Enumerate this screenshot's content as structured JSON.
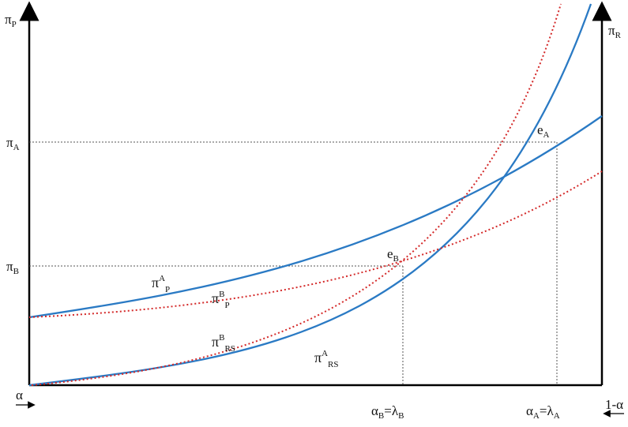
{
  "axes": {
    "left_axis_label": "π",
    "left_axis_sub": "P",
    "right_axis_label": "π",
    "right_axis_sub": "R",
    "x_left_label": "α",
    "x_right_label": "1-α"
  },
  "levels": {
    "pi_A": {
      "main": "π",
      "sub": "A"
    },
    "pi_B": {
      "main": "π",
      "sub": "B"
    }
  },
  "points": {
    "e_A": {
      "main": "e",
      "sub": "A"
    },
    "e_B": {
      "main": "e",
      "sub": "B"
    }
  },
  "x_marks": {
    "alphaB": {
      "a": "α",
      "a_sub": "B",
      "eq": "=λ",
      "l_sub": "B"
    },
    "alphaA": {
      "a": "α",
      "a_sub": "A",
      "eq": "=λ",
      "l_sub": "A"
    }
  },
  "curves": {
    "piA_P": {
      "main": "π",
      "sup": "A",
      "sub": "P",
      "style": "solid",
      "color": "#2a7ac4"
    },
    "piB_P": {
      "main": "π",
      "sup": "B",
      "sub": "P",
      "style": "dotted",
      "color": "#d42a2a"
    },
    "piB_RS": {
      "main": "π",
      "sup": "B",
      "sub": "RS",
      "style": "dotted",
      "color": "#d42a2a"
    },
    "piA_RS": {
      "main": "π",
      "sup": "A",
      "sub": "RS",
      "style": "solid",
      "color": "#2a7ac4"
    }
  }
}
